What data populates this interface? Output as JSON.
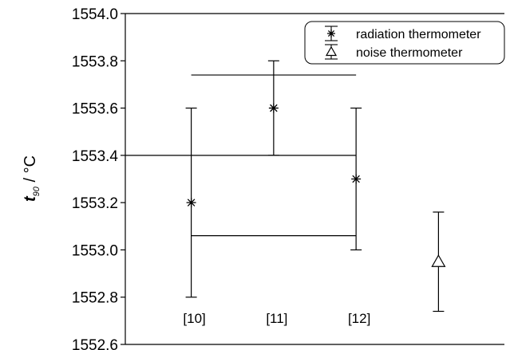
{
  "chart_data": {
    "type": "scatter",
    "title": "",
    "xlabel": "",
    "ylabel": {
      "symbol": "t",
      "subscript": "90",
      "unit": " / °C"
    },
    "ylim": [
      1552.6,
      1554.0
    ],
    "yticks": [
      "1552.6",
      "1552.8",
      "1553.0",
      "1553.2",
      "1553.4",
      "1553.6",
      "1553.8",
      "1554.0"
    ],
    "x_positions": [
      1,
      2,
      3,
      4
    ],
    "xlim": [
      0.2,
      4.8
    ],
    "series": [
      {
        "name": "radiation thermometer",
        "marker": "asterisk",
        "points": [
          {
            "x": 1,
            "y": 1553.2,
            "low": 1552.8,
            "high": 1553.6,
            "label": "[10]"
          },
          {
            "x": 2,
            "y": 1553.6,
            "low": 1553.4,
            "high": 1553.8,
            "label": "[11]"
          },
          {
            "x": 3,
            "y": 1553.3,
            "low": 1553.0,
            "high": 1553.6,
            "label": "[12]"
          }
        ]
      },
      {
        "name": "noise thermometer",
        "marker": "triangle",
        "points": [
          {
            "x": 4,
            "y": 1552.95,
            "low": 1552.74,
            "high": 1553.16
          }
        ]
      }
    ],
    "reference_lines": [
      {
        "y": 1553.74,
        "x_from": 1,
        "x_to": 3
      },
      {
        "y": 1553.4,
        "x_from": 0.2,
        "x_to": 3
      },
      {
        "y": 1553.06,
        "x_from": 1,
        "x_to": 3
      }
    ],
    "legend_position": "top-right",
    "grid": false
  }
}
